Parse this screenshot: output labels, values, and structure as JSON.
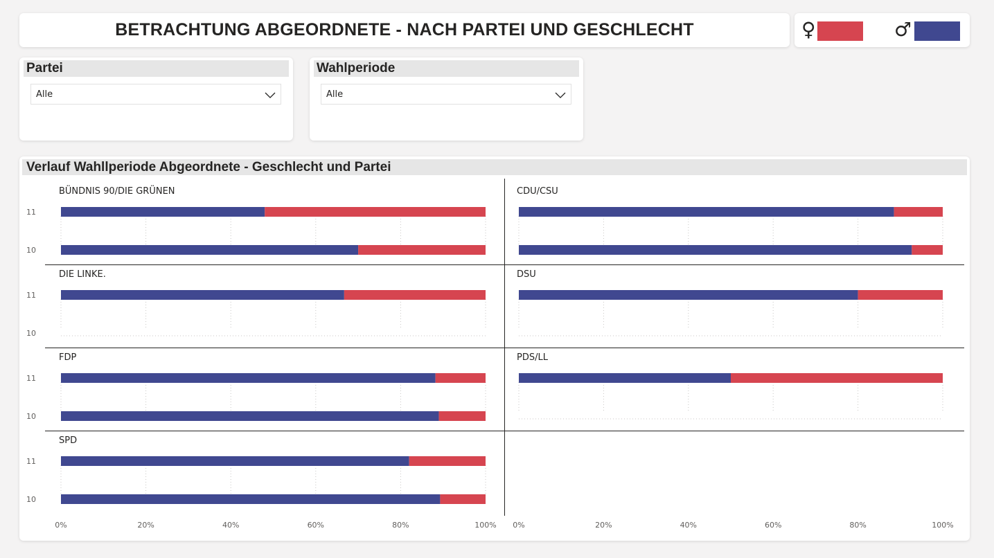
{
  "header": {
    "title": "BETRACHTUNG ABGEORDNETE - NACH PARTEI UND GESCHLECHT"
  },
  "legend": {
    "female_symbol": "♀",
    "male_symbol": "♂",
    "female_color": "#d64550",
    "male_color": "#404890"
  },
  "slicers": {
    "partei": {
      "label": "Partei",
      "value": "Alle"
    },
    "wahlperiode": {
      "label": "Wahlperiode",
      "value": "Alle"
    }
  },
  "chart_data": {
    "type": "bar",
    "orientation": "horizontal",
    "stacked": "100%",
    "title": "Verlauf Wahllperiode Abgeordnete - Geschlecht und Partei",
    "categories": [
      "11",
      "10"
    ],
    "x_ticks": [
      "0%",
      "20%",
      "40%",
      "60%",
      "80%",
      "100%"
    ],
    "xlim": [
      0,
      100
    ],
    "series_names": [
      "männlich",
      "weiblich"
    ],
    "colors": {
      "männlich": "#404890",
      "weiblich": "#d64550"
    },
    "panels": [
      {
        "party": "BÜNDNIS 90/DIE GRÜNEN",
        "male_pct": {
          "11": 48,
          "10": 70
        }
      },
      {
        "party": "CDU/CSU",
        "male_pct": {
          "11": 88.5,
          "10": 92.7
        }
      },
      {
        "party": "DIE LINKE.",
        "male_pct": {
          "11": 66.7,
          "10": null
        }
      },
      {
        "party": "DSU",
        "male_pct": {
          "11": 80,
          "10": null
        }
      },
      {
        "party": "FDP",
        "male_pct": {
          "11": 88.2,
          "10": 89
        }
      },
      {
        "party": "PDS/LL",
        "male_pct": {
          "11": 50,
          "10": null
        }
      },
      {
        "party": "SPD",
        "male_pct": {
          "11": 82,
          "10": 89.3
        }
      }
    ]
  }
}
